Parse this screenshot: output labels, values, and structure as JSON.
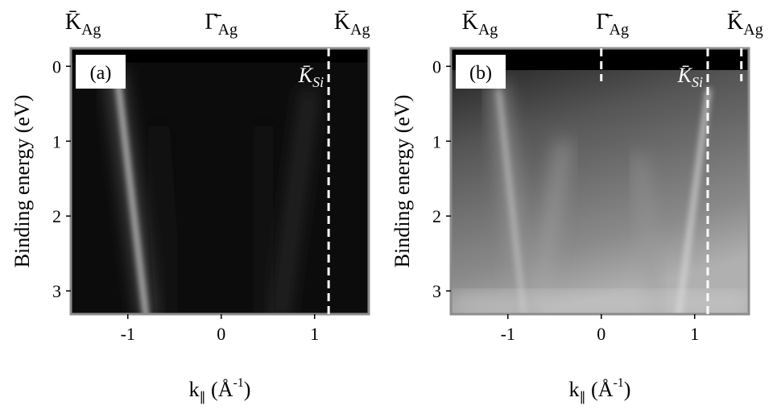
{
  "chart_data": [
    {
      "type": "arpes",
      "panel_label": "(a)",
      "scheme": "dark",
      "ylabel": "Binding energy (eV)",
      "xlabel": {
        "main": "k",
        "sub": "∥",
        "unit": " (Å",
        "sup": "-1",
        "close": ")"
      },
      "xlim": [
        -1.61,
        1.58
      ],
      "ylim": [
        -0.24,
        3.31
      ],
      "y_inverted": true,
      "xticks": [
        -1,
        0,
        1
      ],
      "yticks": [
        0,
        1,
        2,
        3
      ],
      "top_labels": [
        {
          "symbol": "K̄",
          "subscript": "Ag",
          "x": -1.48
        },
        {
          "symbol": "Γ̄",
          "subscript": "Ag",
          "x": 0
        },
        {
          "symbol": "K̄",
          "subscript": "Ag",
          "x": 1.4
        }
      ],
      "markers": [
        {
          "x": 1.15,
          "label": {
            "symbol": "K̄",
            "subscript": "Si"
          }
        }
      ]
    },
    {
      "type": "arpes",
      "panel_label": "(b)",
      "scheme": "gray",
      "ylabel": "Binding energy (eV)",
      "xlabel": {
        "main": "k",
        "sub": "∥",
        "unit": " (Å",
        "sup": "-1",
        "close": ")"
      },
      "xlim": [
        -1.61,
        1.58
      ],
      "ylim": [
        -0.24,
        3.31
      ],
      "y_inverted": true,
      "xticks": [
        -1,
        0,
        1
      ],
      "yticks": [
        0,
        1,
        2,
        3
      ],
      "top_labels": [
        {
          "symbol": "K̄",
          "subscript": "Ag",
          "x": -1.3
        },
        {
          "symbol": "Γ̄",
          "subscript": "Ag",
          "x": 0.12
        },
        {
          "symbol": "K̄",
          "subscript": "Ag",
          "x": 1.54
        }
      ],
      "markers": [
        {
          "x": 0,
          "y_end": 0.2
        },
        {
          "x": 1.14,
          "label": {
            "symbol": "K̄",
            "subscript": "Si"
          }
        },
        {
          "x": 1.5,
          "y_end": 0.2
        }
      ]
    }
  ]
}
